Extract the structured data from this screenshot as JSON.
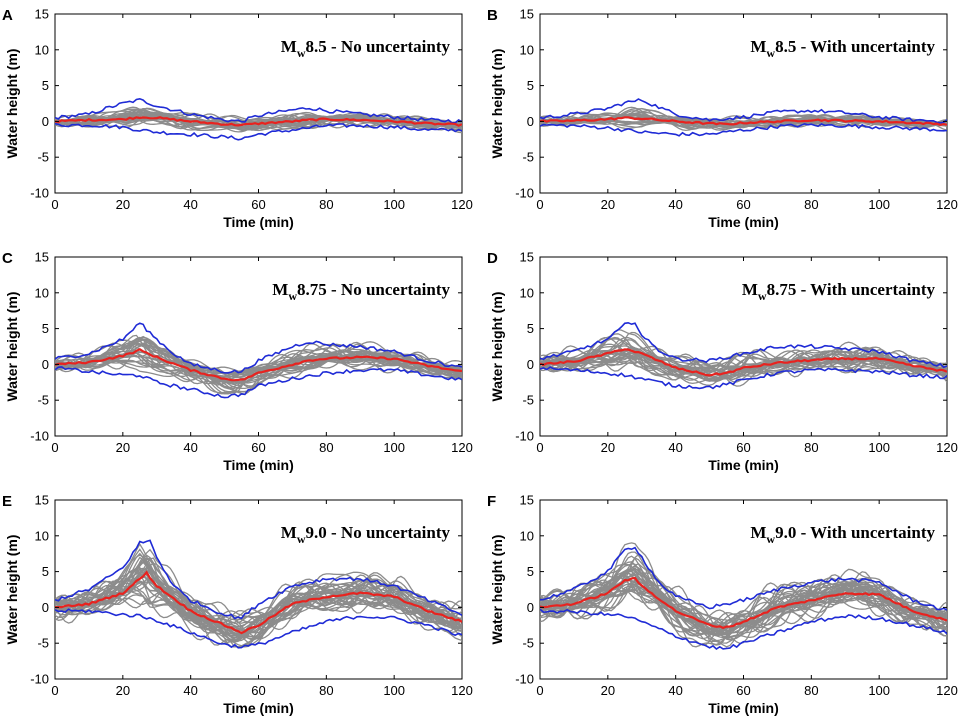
{
  "figure": {
    "description_colors": {
      "ensemble": "#8c8c8c",
      "mean": "#e8231f",
      "bounds": "#1f2bd6"
    }
  },
  "chart_data": [
    {
      "letter": "A",
      "type": "line",
      "title": "Mw8.5 - No uncertainty",
      "title_prefix": "M",
      "title_sub": "w",
      "title_rest": "8.5 - No uncertainty",
      "xlabel": "Time (min)",
      "ylabel": "Water height (m)",
      "xlim": [
        0,
        120
      ],
      "ylim": [
        -10,
        15
      ],
      "xticks": [
        "0",
        "20",
        "40",
        "60",
        "80",
        "100",
        "120"
      ],
      "yticks": [
        "-10",
        "-5",
        "0",
        "5",
        "10",
        "15"
      ],
      "mean": {
        "x": [
          0,
          10,
          20,
          25,
          30,
          40,
          50,
          55,
          60,
          70,
          75,
          80,
          90,
          100,
          110,
          120
        ],
        "y": [
          0,
          0.2,
          0.3,
          0.6,
          0.5,
          0,
          -0.4,
          -0.5,
          -0.3,
          0,
          0.2,
          0.3,
          0.2,
          0,
          -0.3,
          -0.5
        ]
      },
      "upper": {
        "x": [
          0,
          10,
          15,
          20,
          25,
          30,
          40,
          50,
          55,
          60,
          70,
          75,
          80,
          90,
          100,
          110,
          120
        ],
        "y": [
          0.5,
          1,
          1.8,
          2.5,
          3,
          2.2,
          1,
          0.2,
          0,
          0.8,
          1.6,
          1.9,
          1.5,
          1,
          0.6,
          0.2,
          0
        ]
      },
      "lower": {
        "x": [
          0,
          10,
          20,
          25,
          30,
          40,
          50,
          55,
          60,
          70,
          80,
          90,
          100,
          110,
          120
        ],
        "y": [
          -0.5,
          -0.5,
          -0.8,
          -1.2,
          -1.5,
          -1.8,
          -2.2,
          -2.4,
          -1.8,
          -1.2,
          -0.6,
          -0.6,
          -0.8,
          -1.2,
          -1.2
        ]
      },
      "ensemble_amp": 1.0,
      "ensemble_count": 26
    },
    {
      "letter": "B",
      "type": "line",
      "title": "Mw8.5 - With uncertainty",
      "title_prefix": "M",
      "title_sub": "w",
      "title_rest": "8.5 - With uncertainty",
      "xlabel": "Time (min)",
      "ylabel": "Water height (m)",
      "xlim": [
        0,
        120
      ],
      "ylim": [
        -10,
        15
      ],
      "xticks": [
        "0",
        "20",
        "40",
        "60",
        "80",
        "100",
        "120"
      ],
      "yticks": [
        "-10",
        "-5",
        "0",
        "5",
        "10",
        "15"
      ],
      "mean": {
        "x": [
          0,
          10,
          20,
          25,
          30,
          40,
          50,
          55,
          60,
          70,
          80,
          90,
          100,
          110,
          120
        ],
        "y": [
          0,
          0.1,
          0.3,
          0.5,
          0.4,
          0,
          -0.3,
          -0.4,
          -0.2,
          0,
          0.2,
          0.1,
          0,
          -0.2,
          -0.4
        ]
      },
      "upper": {
        "x": [
          0,
          10,
          20,
          25,
          30,
          35,
          40,
          50,
          60,
          70,
          80,
          90,
          100,
          110,
          120
        ],
        "y": [
          0.5,
          1,
          1.8,
          2.6,
          3,
          2,
          1,
          0.2,
          0.6,
          1.3,
          1.5,
          1.2,
          0.6,
          0.2,
          0
        ]
      },
      "lower": {
        "x": [
          0,
          10,
          20,
          25,
          30,
          40,
          50,
          60,
          70,
          80,
          90,
          100,
          110,
          120
        ],
        "y": [
          -0.5,
          -0.6,
          -0.9,
          -1.2,
          -1.5,
          -1.8,
          -1.8,
          -1.2,
          -0.7,
          -0.5,
          -0.6,
          -0.8,
          -1,
          -1.2
        ]
      },
      "ensemble_amp": 0.9,
      "ensemble_count": 26
    },
    {
      "letter": "C",
      "type": "line",
      "title": "Mw8.75 - No uncertainty",
      "title_prefix": "M",
      "title_sub": "w",
      "title_rest": "8.75 - No uncertainty",
      "xlabel": "Time (min)",
      "ylabel": "Water height (m)",
      "xlim": [
        0,
        120
      ],
      "ylim": [
        -10,
        15
      ],
      "xticks": [
        "0",
        "20",
        "40",
        "60",
        "80",
        "100",
        "120"
      ],
      "yticks": [
        "-10",
        "-5",
        "0",
        "5",
        "10",
        "15"
      ],
      "mean": {
        "x": [
          0,
          10,
          20,
          25,
          30,
          40,
          50,
          55,
          60,
          70,
          75,
          80,
          90,
          100,
          110,
          120
        ],
        "y": [
          0,
          0.3,
          1.2,
          2,
          1,
          -0.8,
          -2,
          -2.2,
          -1.2,
          0,
          0.6,
          0.8,
          1,
          0.8,
          -0.2,
          -1
        ]
      },
      "upper": {
        "x": [
          0,
          10,
          20,
          25,
          30,
          35,
          40,
          50,
          55,
          60,
          70,
          75,
          80,
          90,
          100,
          110,
          120
        ],
        "y": [
          0.8,
          1.5,
          3.5,
          5.8,
          3.5,
          1.5,
          0,
          -1,
          -1,
          0.5,
          2.5,
          3.2,
          2.8,
          2.5,
          1.8,
          0.5,
          -0.5
        ]
      },
      "lower": {
        "x": [
          0,
          10,
          20,
          25,
          30,
          40,
          50,
          55,
          60,
          70,
          80,
          90,
          100,
          110,
          120
        ],
        "y": [
          -0.5,
          -1,
          -1.5,
          -1.5,
          -2.5,
          -3.5,
          -4.5,
          -4.2,
          -3,
          -2,
          -1.2,
          -0.8,
          -0.8,
          -1.5,
          -2.2
        ]
      },
      "ensemble_amp": 1.6,
      "ensemble_count": 30
    },
    {
      "letter": "D",
      "type": "line",
      "title": "Mw8.75 - With uncertainty",
      "title_prefix": "M",
      "title_sub": "w",
      "title_rest": "8.75 - With uncertainty",
      "xlabel": "Time (min)",
      "ylabel": "Water height (m)",
      "xlim": [
        0,
        120
      ],
      "ylim": [
        -10,
        15
      ],
      "xticks": [
        "0",
        "20",
        "40",
        "60",
        "80",
        "100",
        "120"
      ],
      "yticks": [
        "-10",
        "-5",
        "0",
        "5",
        "10",
        "15"
      ],
      "mean": {
        "x": [
          0,
          10,
          20,
          25,
          30,
          40,
          50,
          55,
          60,
          70,
          80,
          90,
          100,
          110,
          120
        ],
        "y": [
          0,
          0.4,
          1.5,
          2.2,
          1.5,
          -0.5,
          -1.5,
          -1.2,
          -0.5,
          0.2,
          0.6,
          0.8,
          0.8,
          -0.2,
          -1
        ]
      },
      "upper": {
        "x": [
          0,
          10,
          20,
          25,
          28,
          30,
          35,
          40,
          50,
          60,
          70,
          80,
          90,
          100,
          110,
          120
        ],
        "y": [
          0.8,
          1.8,
          3.5,
          5.5,
          6,
          4,
          2,
          0.8,
          0.5,
          1.5,
          2.5,
          2.5,
          2.2,
          1.8,
          0.5,
          -0.3
        ]
      },
      "lower": {
        "x": [
          0,
          10,
          20,
          25,
          30,
          40,
          50,
          55,
          60,
          70,
          80,
          90,
          100,
          110,
          120
        ],
        "y": [
          -0.5,
          -0.8,
          -1.2,
          -1.5,
          -2,
          -3,
          -3.2,
          -2.8,
          -2.2,
          -1.2,
          -0.8,
          -0.8,
          -1,
          -1.5,
          -1.8
        ]
      },
      "ensemble_amp": 2.0,
      "ensemble_count": 30
    },
    {
      "letter": "E",
      "type": "line",
      "title": "Mw9.0 - No uncertainty",
      "title_prefix": "M",
      "title_sub": "w",
      "title_rest": "9.0 - No uncertainty",
      "xlabel": "Time (min)",
      "ylabel": "Water height (m)",
      "xlim": [
        0,
        120
      ],
      "ylim": [
        -10,
        15
      ],
      "xticks": [
        "0",
        "20",
        "40",
        "60",
        "80",
        "100",
        "120"
      ],
      "yticks": [
        "-10",
        "-5",
        "0",
        "5",
        "10",
        "15"
      ],
      "mean": {
        "x": [
          0,
          10,
          20,
          25,
          27,
          30,
          40,
          50,
          55,
          60,
          70,
          80,
          90,
          100,
          110,
          120
        ],
        "y": [
          0,
          0.5,
          2,
          4,
          4.8,
          3,
          -0.5,
          -2.5,
          -3.5,
          -2.5,
          0.5,
          1.5,
          2,
          1.5,
          -0.5,
          -2
        ]
      },
      "upper": {
        "x": [
          0,
          10,
          20,
          25,
          28,
          30,
          35,
          40,
          50,
          55,
          60,
          70,
          80,
          90,
          100,
          110,
          120
        ],
        "y": [
          1,
          2.5,
          5.5,
          9,
          9.3,
          7,
          3,
          1,
          -1,
          -1.5,
          0.5,
          3,
          4,
          4,
          3,
          1,
          -1
        ]
      },
      "lower": {
        "x": [
          0,
          10,
          20,
          25,
          30,
          40,
          50,
          55,
          60,
          70,
          80,
          90,
          100,
          110,
          120
        ],
        "y": [
          -0.5,
          -0.5,
          -1,
          -1.2,
          -1.8,
          -3.5,
          -5.2,
          -5.5,
          -5.2,
          -3.5,
          -2,
          -1.2,
          -1.5,
          -2.5,
          -4
        ]
      },
      "ensemble_amp": 2.6,
      "ensemble_count": 36
    },
    {
      "letter": "F",
      "type": "line",
      "title": "Mw9.0 - With uncertainty",
      "title_prefix": "M",
      "title_sub": "w",
      "title_rest": "9.0 - With uncertainty",
      "xlabel": "Time (min)",
      "ylabel": "Water height (m)",
      "xlim": [
        0,
        120
      ],
      "ylim": [
        -10,
        15
      ],
      "xticks": [
        "0",
        "20",
        "40",
        "60",
        "80",
        "100",
        "120"
      ],
      "yticks": [
        "-10",
        "-5",
        "0",
        "5",
        "10",
        "15"
      ],
      "mean": {
        "x": [
          0,
          10,
          20,
          25,
          28,
          30,
          40,
          50,
          55,
          60,
          70,
          80,
          90,
          100,
          110,
          120
        ],
        "y": [
          0,
          0.5,
          2,
          3.8,
          4,
          3,
          -0.5,
          -2.5,
          -2.8,
          -2,
          0,
          1,
          2,
          1.8,
          -0.5,
          -1.8
        ]
      },
      "upper": {
        "x": [
          0,
          10,
          20,
          25,
          28,
          30,
          35,
          40,
          50,
          60,
          70,
          80,
          90,
          100,
          110,
          120
        ],
        "y": [
          1,
          2.5,
          5,
          8,
          8.5,
          7,
          3.5,
          1.5,
          0,
          1,
          2.5,
          3.5,
          4,
          3.5,
          1,
          -0.5
        ]
      },
      "lower": {
        "x": [
          0,
          10,
          20,
          25,
          30,
          40,
          50,
          55,
          60,
          70,
          80,
          90,
          100,
          110,
          120
        ],
        "y": [
          -0.5,
          -0.6,
          -1,
          -1.2,
          -2,
          -4,
          -5.5,
          -5.8,
          -5,
          -3.5,
          -2,
          -1.2,
          -1.5,
          -2.5,
          -3.5
        ]
      },
      "ensemble_amp": 2.8,
      "ensemble_count": 36
    }
  ]
}
